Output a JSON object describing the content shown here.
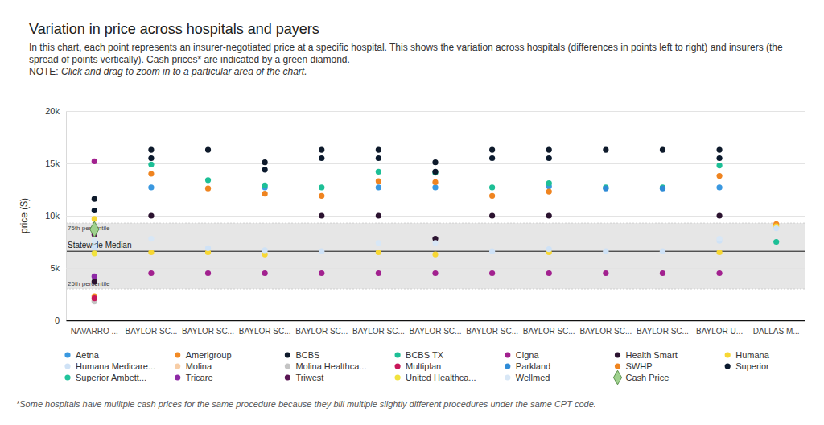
{
  "chart_data": {
    "type": "scatter",
    "title": "Variation in price across hospitals and payers",
    "subtitle": "In this chart, each point represents an insurer-negotiated price at a specific hospital. This shows the variation across hospitals (differences in points left to right) and insurers (the spread of points vertically). Cash prices* are indicated by a green diamond.",
    "note_label": "NOTE:",
    "note": "Click and drag to zoom in to a particular area of the chart.",
    "footnote": "*Some hospitals have mulitple cash prices for the same procedure because they bill multiple slightly different procedures under the same CPT code.",
    "y_label": "price ($)",
    "categories": [
      "NAVARRO ...",
      "BAYLOR SC...",
      "BAYLOR SC...",
      "BAYLOR SC...",
      "BAYLOR SC...",
      "BAYLOR SC...",
      "BAYLOR SC...",
      "BAYLOR SC...",
      "BAYLOR SC...",
      "BAYLOR SC...",
      "BAYLOR SC...",
      "BAYLOR U...",
      "DALLAS M..."
    ],
    "ylim": [
      0,
      20000
    ],
    "yticks": [
      0,
      {
        "value": 5000,
        "label": "5k"
      },
      {
        "value": 10000,
        "label": "10k"
      },
      {
        "value": 15000,
        "label": "15k"
      },
      {
        "value": 20000,
        "label": "20k"
      }
    ],
    "grid": true,
    "legend": "bottom",
    "marker": "circle",
    "reference_band": {
      "lower": 3000,
      "upper": 9300,
      "lower_label": "25th percentile",
      "upper_label": "75th percentile"
    },
    "reference_line": {
      "value": 6600,
      "label": "Statewide Median"
    },
    "series": [
      {
        "name": "Aetna",
        "color": "#3a98e0",
        "values": [
          null,
          12700,
          null,
          12700,
          null,
          12700,
          12700,
          null,
          12800,
          null,
          null,
          12700,
          null
        ]
      },
      {
        "name": "Amerigroup",
        "color": "#f28a24",
        "values": [
          2300,
          null,
          null,
          null,
          null,
          null,
          null,
          null,
          null,
          null,
          null,
          null,
          9200
        ]
      },
      {
        "name": "BCBS",
        "color": "#0e1a2b",
        "values": [
          11600,
          16300,
          16300,
          15100,
          16300,
          16300,
          15100,
          16300,
          16300,
          16300,
          16300,
          16300,
          null
        ]
      },
      {
        "name": "BCBS TX",
        "color": "#1dbf96",
        "values": [
          null,
          14900,
          13400,
          12900,
          12700,
          14200,
          14100,
          12700,
          13100,
          12700,
          12700,
          14800,
          7500
        ]
      },
      {
        "name": "Cigna",
        "color": "#a2218f",
        "values": [
          15200,
          4500,
          4500,
          4500,
          4500,
          4500,
          4500,
          4500,
          4500,
          4500,
          4500,
          4500,
          null
        ]
      },
      {
        "name": "Health Smart",
        "color": "#2b1330",
        "values": [
          3700,
          10000,
          null,
          null,
          10000,
          10000,
          7800,
          10000,
          10000,
          null,
          null,
          10000,
          null
        ]
      },
      {
        "name": "Humana",
        "color": "#f7d733",
        "values": [
          9700,
          6500,
          6500,
          6300,
          null,
          6500,
          6300,
          null,
          6500,
          null,
          null,
          6500,
          9000
        ]
      },
      {
        "name": "Humana Medicare...",
        "color": "#cfe2f6",
        "values": [
          7000,
          null,
          6900,
          6700,
          6600,
          null,
          null,
          6600,
          6800,
          6600,
          6600,
          7600,
          8800
        ]
      },
      {
        "name": "Molina",
        "color": "#f7cda6",
        "values": [
          1900,
          null,
          null,
          null,
          null,
          null,
          null,
          null,
          null,
          null,
          null,
          null,
          null
        ]
      },
      {
        "name": "Molina Healthca...",
        "color": "#c4c4c4",
        "values": [
          1800,
          null,
          null,
          null,
          null,
          null,
          null,
          null,
          null,
          null,
          null,
          null,
          null
        ]
      },
      {
        "name": "Multiplan",
        "color": "#c8175a",
        "values": [
          2100,
          null,
          null,
          null,
          null,
          null,
          null,
          null,
          null,
          null,
          null,
          null,
          null
        ]
      },
      {
        "name": "Parkland",
        "color": "#2f8bd6",
        "values": [
          null,
          null,
          null,
          null,
          null,
          null,
          null,
          null,
          null,
          12600,
          12600,
          null,
          null
        ]
      },
      {
        "name": "SWHP",
        "color": "#ef8420",
        "values": [
          null,
          14000,
          12600,
          12100,
          11900,
          13300,
          13200,
          11900,
          12300,
          null,
          null,
          13800,
          null
        ]
      },
      {
        "name": "Superior",
        "color": "#0b1a2e",
        "values": [
          10500,
          15500,
          null,
          14400,
          15500,
          15500,
          14200,
          15500,
          15500,
          null,
          null,
          15500,
          null
        ]
      },
      {
        "name": "Superior Ambett...",
        "color": "#22c49c",
        "values": [
          null,
          null,
          null,
          null,
          null,
          null,
          null,
          null,
          null,
          null,
          null,
          null,
          null
        ]
      },
      {
        "name": "Tricare",
        "color": "#8e2aa6",
        "values": [
          4200,
          null,
          null,
          null,
          null,
          null,
          null,
          null,
          null,
          null,
          null,
          null,
          null
        ]
      },
      {
        "name": "Triwest",
        "color": "#5a1654",
        "values": [
          8200,
          null,
          null,
          null,
          null,
          null,
          null,
          null,
          null,
          null,
          null,
          null,
          null
        ]
      },
      {
        "name": "United Healthca...",
        "color": "#f1e23d",
        "values": [
          6400,
          null,
          null,
          null,
          null,
          null,
          null,
          null,
          null,
          null,
          null,
          null,
          null
        ]
      },
      {
        "name": "Wellmed",
        "color": "#d8e7f6",
        "values": [
          7600,
          7800,
          null,
          null,
          null,
          7400,
          7400,
          null,
          null,
          null,
          null,
          7800,
          null
        ]
      },
      {
        "name": "Cash Price",
        "color": "#9fd18e",
        "marker": "diamond",
        "values": [
          8700,
          null,
          null,
          null,
          null,
          null,
          null,
          null,
          null,
          null,
          null,
          null,
          null
        ]
      }
    ]
  }
}
